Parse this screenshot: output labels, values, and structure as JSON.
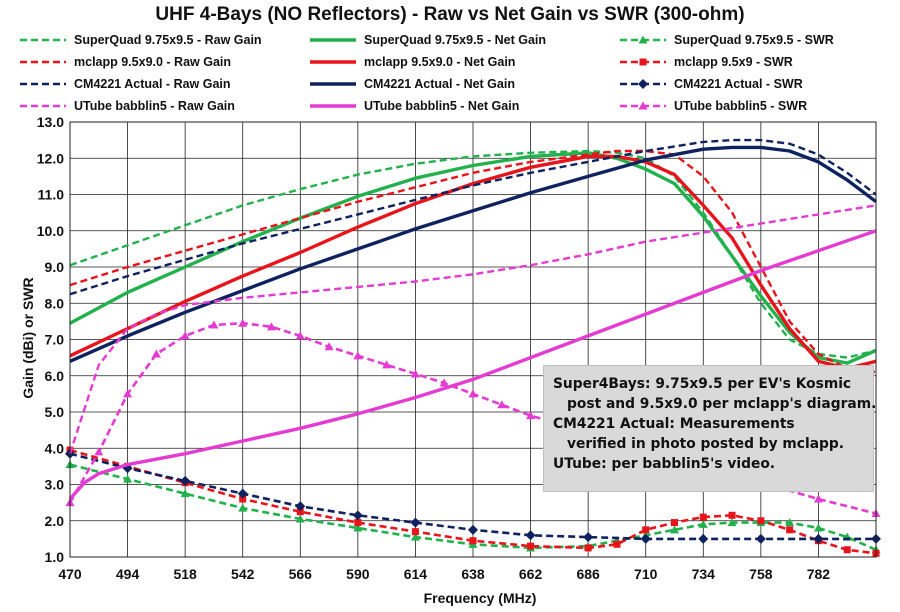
{
  "chart_data": {
    "type": "line",
    "title": "UHF 4-Bays (NO Reflectors) - Raw vs Net Gain vs SWR (300-ohm)",
    "xlabel": "Frequency (MHz)",
    "ylabel": "Gain (dBi) or SWR",
    "xlim": [
      470,
      806
    ],
    "ylim": [
      1.0,
      13.0
    ],
    "x_ticks": [
      "470",
      "494",
      "518",
      "542",
      "566",
      "590",
      "614",
      "638",
      "662",
      "686",
      "710",
      "734",
      "758",
      "782"
    ],
    "y_ticks": [
      "1.0",
      "2.0",
      "3.0",
      "4.0",
      "5.0",
      "6.0",
      "7.0",
      "8.0",
      "9.0",
      "10.0",
      "11.0",
      "12.0",
      "13.0"
    ],
    "grid": true,
    "legend_position": "top",
    "series": [
      {
        "name": "SuperQuad 9.75x9.5 - Raw Gain",
        "color": "#22b14c",
        "style": "dash",
        "marker": "none",
        "x": [
          470,
          494,
          518,
          542,
          566,
          590,
          614,
          638,
          662,
          686,
          698,
          710,
          722,
          734,
          746,
          758,
          770,
          782,
          794,
          806
        ],
        "y": [
          9.05,
          9.6,
          10.15,
          10.7,
          11.15,
          11.55,
          11.85,
          12.05,
          12.15,
          12.2,
          12.15,
          12.0,
          11.5,
          10.5,
          9.3,
          8.0,
          7.0,
          6.6,
          6.5,
          6.7
        ]
      },
      {
        "name": "SuperQuad 9.75x9.5 - Net Gain",
        "color": "#22b14c",
        "style": "solid",
        "marker": "none",
        "x": [
          470,
          494,
          518,
          542,
          566,
          590,
          614,
          638,
          662,
          686,
          698,
          710,
          722,
          734,
          746,
          758,
          770,
          782,
          794,
          806
        ],
        "y": [
          7.45,
          8.3,
          9.0,
          9.7,
          10.35,
          10.95,
          11.45,
          11.8,
          12.05,
          12.15,
          12.0,
          11.7,
          11.3,
          10.4,
          9.3,
          8.2,
          7.2,
          6.5,
          6.35,
          6.7
        ]
      },
      {
        "name": "SuperQuad 9.75x9.5 - SWR",
        "color": "#22b14c",
        "style": "dash",
        "marker": "triangle",
        "x": [
          470,
          494,
          518,
          542,
          566,
          590,
          614,
          638,
          662,
          686,
          698,
          710,
          722,
          734,
          746,
          758,
          770,
          782,
          794,
          806
        ],
        "y": [
          3.55,
          3.15,
          2.75,
          2.35,
          2.05,
          1.8,
          1.55,
          1.35,
          1.25,
          1.3,
          1.45,
          1.6,
          1.75,
          1.9,
          1.95,
          1.95,
          1.95,
          1.8,
          1.55,
          1.2
        ]
      },
      {
        "name": "mclapp 9.5x9.0 - Raw Gain",
        "color": "#e8141c",
        "style": "dash",
        "marker": "none",
        "x": [
          470,
          494,
          518,
          542,
          566,
          590,
          614,
          638,
          662,
          686,
          698,
          710,
          722,
          734,
          746,
          758,
          770,
          782,
          794,
          806
        ],
        "y": [
          8.5,
          9.0,
          9.45,
          9.9,
          10.35,
          10.8,
          11.2,
          11.6,
          11.9,
          12.1,
          12.2,
          12.2,
          12.1,
          11.5,
          10.5,
          9.0,
          7.5,
          6.6,
          6.2,
          6.1
        ]
      },
      {
        "name": "mclapp 9.5x9.0 - Net Gain",
        "color": "#e8141c",
        "style": "solid",
        "marker": "none",
        "x": [
          470,
          494,
          518,
          542,
          566,
          590,
          614,
          638,
          662,
          686,
          698,
          710,
          722,
          734,
          746,
          758,
          770,
          782,
          794,
          806
        ],
        "y": [
          6.55,
          7.3,
          8.05,
          8.75,
          9.4,
          10.1,
          10.75,
          11.3,
          11.75,
          12.05,
          12.05,
          11.9,
          11.55,
          10.7,
          9.8,
          8.5,
          7.3,
          6.4,
          6.2,
          6.4
        ]
      },
      {
        "name": "mclapp 9.5x9 - SWR",
        "color": "#e8141c",
        "style": "dash",
        "marker": "square",
        "x": [
          470,
          494,
          518,
          542,
          566,
          590,
          614,
          638,
          662,
          686,
          698,
          710,
          722,
          734,
          746,
          758,
          770,
          782,
          794,
          806
        ],
        "y": [
          3.95,
          3.5,
          3.05,
          2.6,
          2.25,
          1.95,
          1.7,
          1.45,
          1.3,
          1.25,
          1.35,
          1.75,
          1.95,
          2.1,
          2.15,
          2.0,
          1.75,
          1.45,
          1.2,
          1.1
        ]
      },
      {
        "name": "CM4221 Actual - Raw Gain",
        "color": "#0f2260",
        "style": "dash",
        "marker": "none",
        "x": [
          470,
          494,
          518,
          542,
          566,
          590,
          614,
          638,
          662,
          686,
          710,
          734,
          746,
          758,
          770,
          782,
          794,
          806
        ],
        "y": [
          8.25,
          8.75,
          9.2,
          9.65,
          10.05,
          10.45,
          10.85,
          11.25,
          11.6,
          11.9,
          12.2,
          12.45,
          12.5,
          12.5,
          12.4,
          12.1,
          11.6,
          11.0
        ]
      },
      {
        "name": "CM4221 Actual - Net Gain",
        "color": "#0f2260",
        "style": "solid",
        "marker": "none",
        "x": [
          470,
          494,
          518,
          542,
          566,
          590,
          614,
          638,
          662,
          686,
          710,
          734,
          746,
          758,
          770,
          782,
          794,
          806
        ],
        "y": [
          6.4,
          7.1,
          7.75,
          8.35,
          8.95,
          9.5,
          10.05,
          10.55,
          11.05,
          11.5,
          11.95,
          12.25,
          12.3,
          12.3,
          12.2,
          11.9,
          11.4,
          10.8
        ]
      },
      {
        "name": "CM4221 Actual - SWR",
        "color": "#0f2260",
        "style": "dash",
        "marker": "diamond",
        "x": [
          470,
          494,
          518,
          542,
          566,
          590,
          614,
          638,
          662,
          686,
          710,
          734,
          758,
          782,
          806
        ],
        "y": [
          3.85,
          3.45,
          3.1,
          2.75,
          2.4,
          2.15,
          1.95,
          1.75,
          1.6,
          1.55,
          1.5,
          1.5,
          1.5,
          1.5,
          1.5
        ]
      },
      {
        "name": "UTube babblin5 - Raw Gain",
        "color": "#e43bd3",
        "style": "dash",
        "marker": "none",
        "x": [
          470,
          482,
          494,
          506,
          518,
          530,
          542,
          566,
          590,
          614,
          638,
          662,
          686,
          710,
          734,
          758,
          782,
          806
        ],
        "y": [
          3.85,
          6.3,
          7.3,
          7.7,
          7.95,
          8.05,
          8.15,
          8.3,
          8.45,
          8.6,
          8.8,
          9.05,
          9.35,
          9.7,
          9.95,
          10.2,
          10.45,
          10.7
        ]
      },
      {
        "name": "UTube babblin5 - Net Gain",
        "color": "#e43bd3",
        "style": "solid",
        "marker": "none",
        "x": [
          470,
          476,
          482,
          494,
          518,
          542,
          566,
          590,
          614,
          638,
          662,
          686,
          710,
          734,
          758,
          782,
          806
        ],
        "y": [
          2.6,
          3.05,
          3.3,
          3.55,
          3.85,
          4.2,
          4.55,
          4.95,
          5.4,
          5.9,
          6.5,
          7.1,
          7.7,
          8.3,
          8.9,
          9.45,
          10.0
        ]
      },
      {
        "name": "UTube babblin5 - SWR",
        "color": "#e43bd3",
        "style": "dash",
        "marker": "triangle",
        "x": [
          470,
          482,
          494,
          506,
          518,
          530,
          542,
          554,
          566,
          578,
          590,
          602,
          614,
          626,
          638,
          650,
          662,
          782,
          806
        ],
        "y": [
          2.5,
          3.9,
          5.5,
          6.6,
          7.1,
          7.4,
          7.45,
          7.35,
          7.1,
          6.8,
          6.55,
          6.3,
          6.05,
          5.8,
          5.5,
          5.2,
          4.9,
          2.6,
          2.2
        ]
      }
    ],
    "annotation": [
      "Super4Bays: 9.75x9.5 per EV's Kosmic",
      "post and 9.5x9.0 per mclapp's diagram.",
      "CM4221 Actual: Measurements",
      "verified in photo posted by mclapp.",
      "UTube: per babblin5's video."
    ]
  }
}
